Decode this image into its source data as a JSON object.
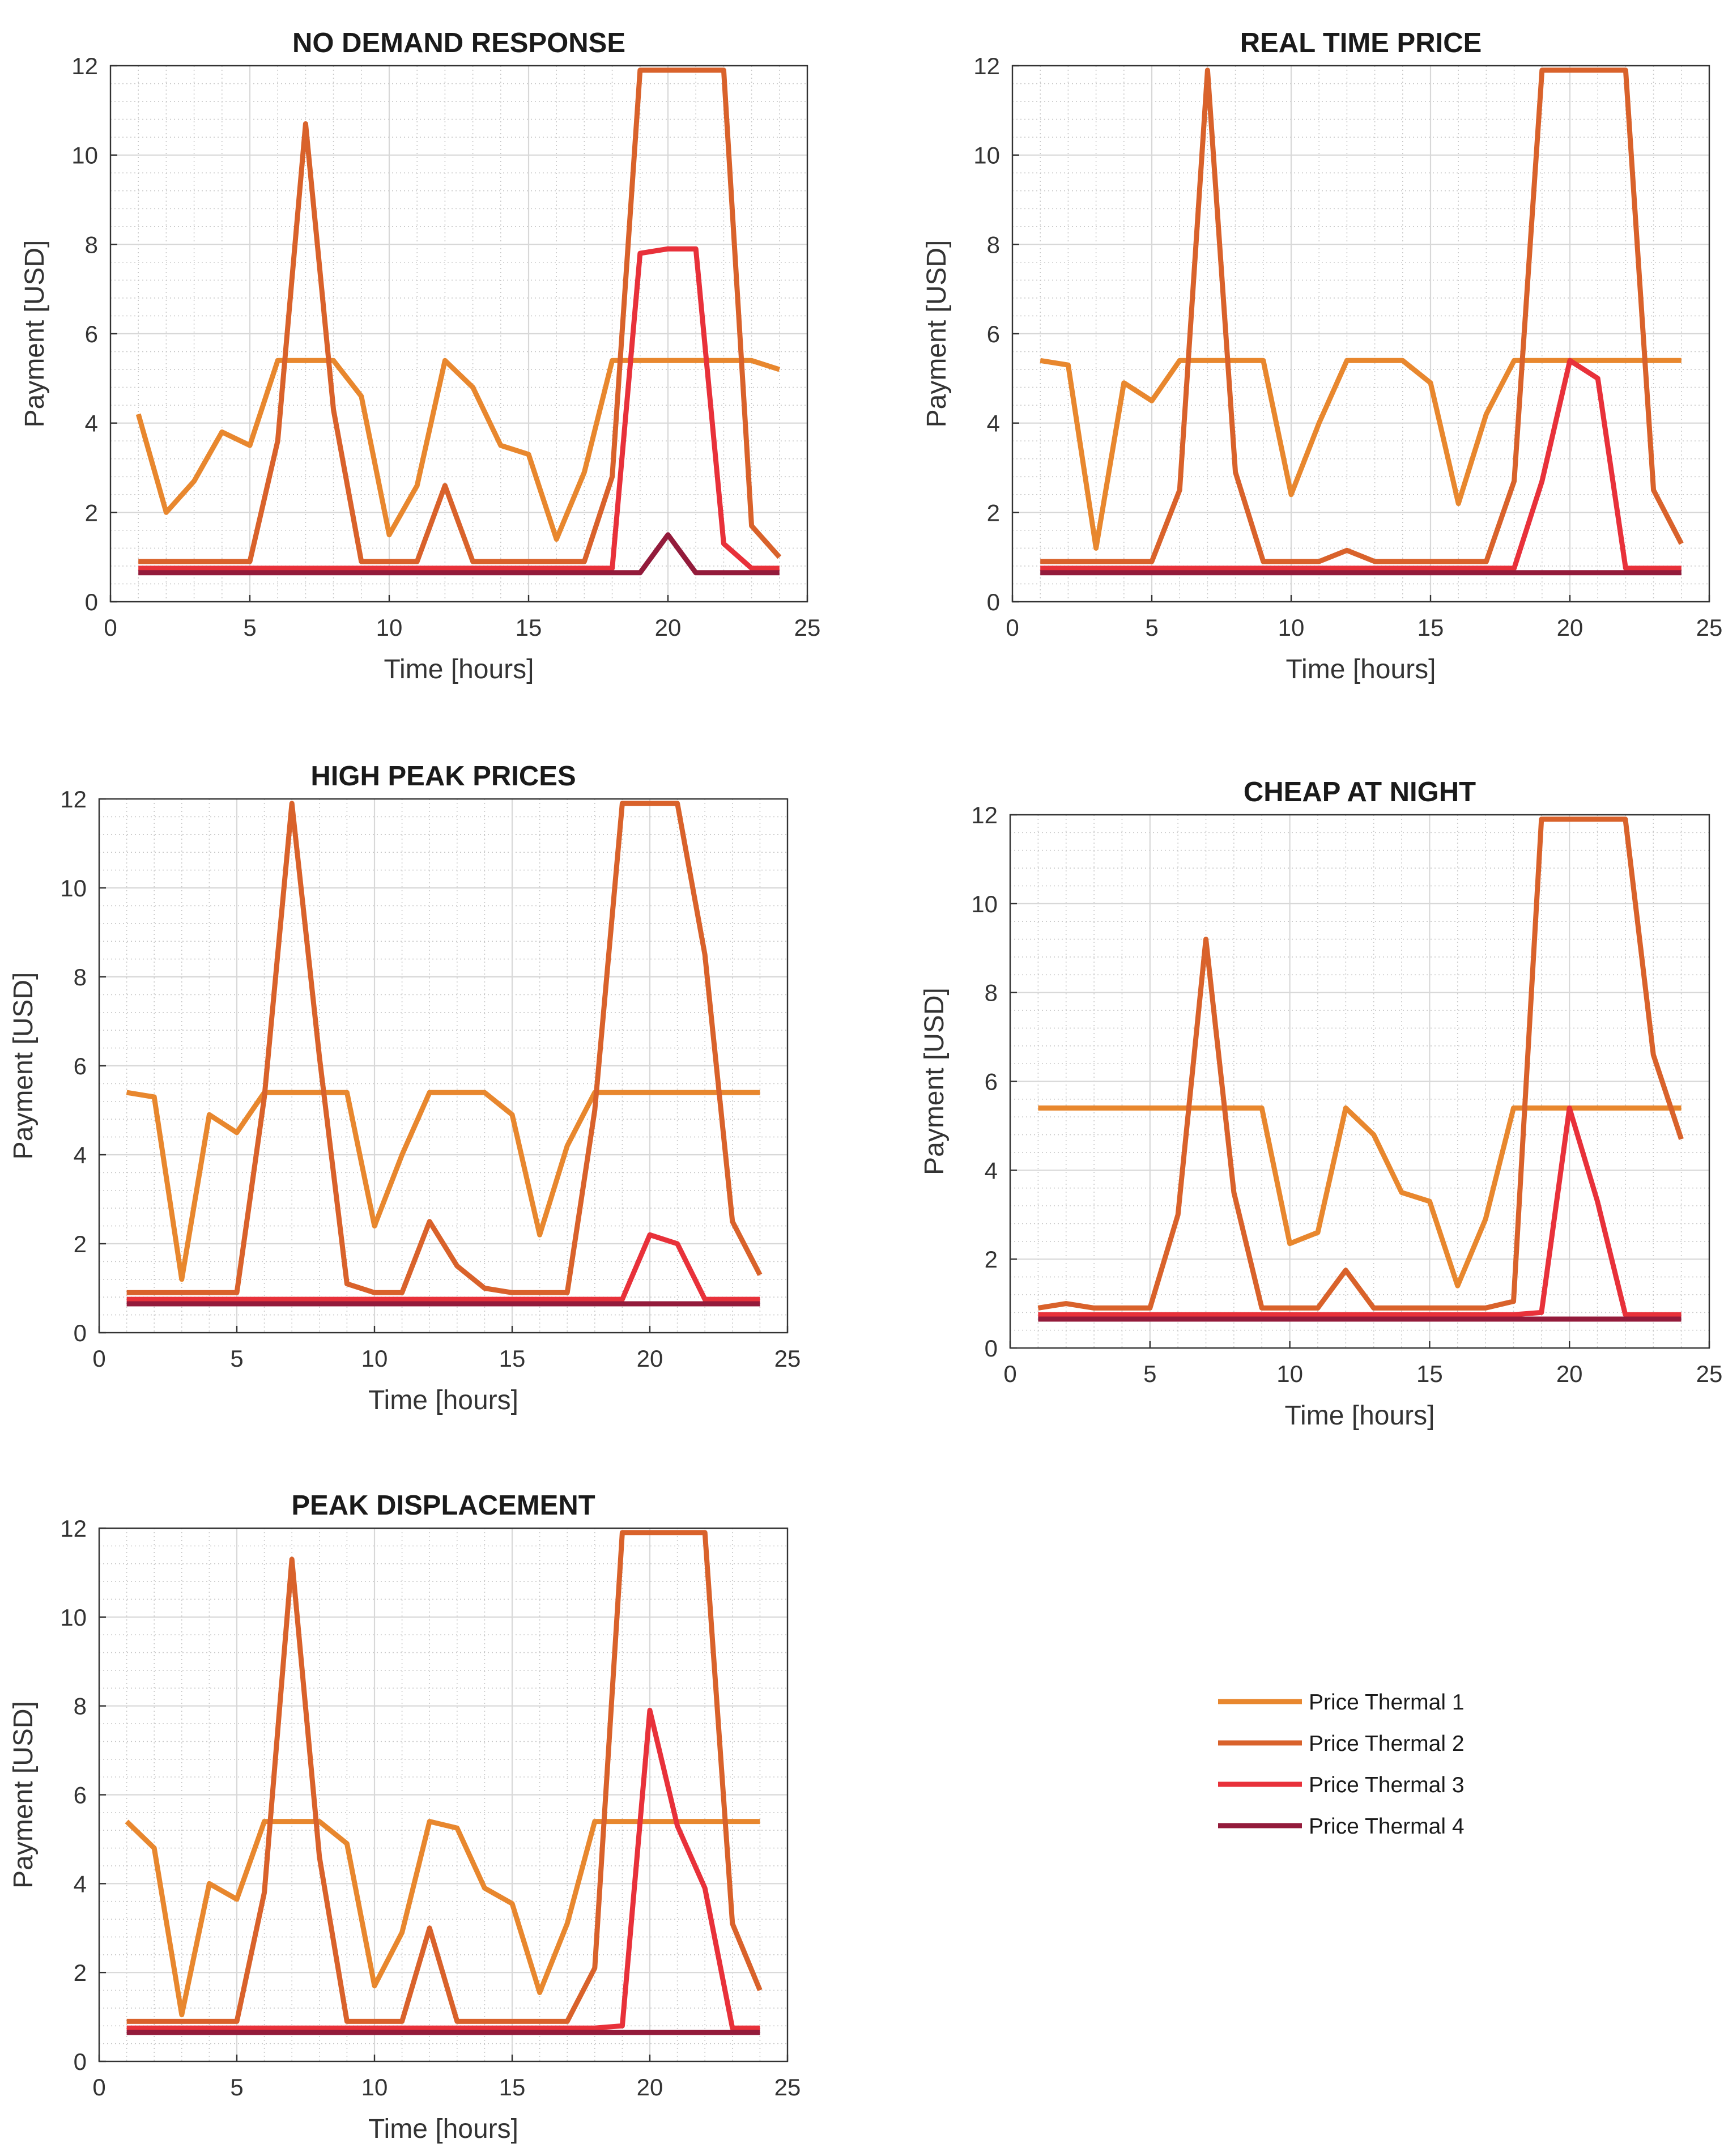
{
  "colors": {
    "series": [
      "#E8872E",
      "#D9622B",
      "#E8313A",
      "#931B3B"
    ],
    "grid_major": "#d8d8d8",
    "grid_minor": "#c8c8c8",
    "axis": "#333333"
  },
  "legend": {
    "entries": [
      "Price Thermal 1",
      "Price Thermal 2",
      "Price Thermal 3",
      "Price Thermal 4"
    ]
  },
  "chart_data": [
    {
      "type": "line",
      "title": "NO DEMAND RESPONSE",
      "xlabel": "Time [hours]",
      "ylabel": "Payment [USD]",
      "xlim": [
        0,
        25
      ],
      "ylim": [
        0,
        12
      ],
      "xticks": [
        0,
        5,
        10,
        15,
        20,
        25
      ],
      "yticks": [
        0,
        2,
        4,
        6,
        8,
        10,
        12
      ],
      "grid": true,
      "x": [
        1,
        2,
        3,
        4,
        5,
        6,
        7,
        8,
        9,
        10,
        11,
        12,
        13,
        14,
        15,
        16,
        17,
        18,
        19,
        20,
        21,
        22,
        23,
        24
      ],
      "series": [
        {
          "name": "Price Thermal 1",
          "values": [
            4.2,
            2.0,
            2.7,
            3.8,
            3.5,
            5.4,
            5.4,
            5.4,
            4.6,
            1.5,
            2.6,
            5.4,
            4.8,
            3.5,
            3.3,
            1.4,
            2.9,
            5.4,
            5.4,
            5.4,
            5.4,
            5.4,
            5.4,
            5.2
          ]
        },
        {
          "name": "Price Thermal 2",
          "values": [
            0.9,
            0.9,
            0.9,
            0.9,
            0.9,
            3.6,
            10.7,
            4.3,
            0.9,
            0.9,
            0.9,
            2.6,
            0.9,
            0.9,
            0.9,
            0.9,
            0.9,
            2.8,
            11.9,
            11.9,
            11.9,
            11.9,
            1.7,
            1.0
          ]
        },
        {
          "name": "Price Thermal 3",
          "values": [
            0.75,
            0.75,
            0.75,
            0.75,
            0.75,
            0.75,
            0.75,
            0.75,
            0.75,
            0.75,
            0.75,
            0.75,
            0.75,
            0.75,
            0.75,
            0.75,
            0.75,
            0.75,
            7.8,
            7.9,
            7.9,
            1.3,
            0.75,
            0.75
          ]
        },
        {
          "name": "Price Thermal 4",
          "values": [
            0.65,
            0.65,
            0.65,
            0.65,
            0.65,
            0.65,
            0.65,
            0.65,
            0.65,
            0.65,
            0.65,
            0.65,
            0.65,
            0.65,
            0.65,
            0.65,
            0.65,
            0.65,
            0.65,
            1.5,
            0.65,
            0.65,
            0.65,
            0.65
          ]
        }
      ]
    },
    {
      "type": "line",
      "title": "REAL TIME PRICE",
      "xlabel": "Time [hours]",
      "ylabel": "Payment [USD]",
      "xlim": [
        0,
        25
      ],
      "ylim": [
        0,
        12
      ],
      "xticks": [
        0,
        5,
        10,
        15,
        20,
        25
      ],
      "yticks": [
        0,
        2,
        4,
        6,
        8,
        10,
        12
      ],
      "grid": true,
      "x": [
        1,
        2,
        3,
        4,
        5,
        6,
        7,
        8,
        9,
        10,
        11,
        12,
        13,
        14,
        15,
        16,
        17,
        18,
        19,
        20,
        21,
        22,
        23,
        24
      ],
      "series": [
        {
          "name": "Price Thermal 1",
          "values": [
            5.4,
            5.3,
            1.2,
            4.9,
            4.5,
            5.4,
            5.4,
            5.4,
            5.4,
            2.4,
            4.0,
            5.4,
            5.4,
            5.4,
            4.9,
            2.2,
            4.2,
            5.4,
            5.4,
            5.4,
            5.4,
            5.4,
            5.4,
            5.4
          ]
        },
        {
          "name": "Price Thermal 2",
          "values": [
            0.9,
            0.9,
            0.9,
            0.9,
            0.9,
            2.5,
            11.9,
            2.9,
            0.9,
            0.9,
            0.9,
            1.15,
            0.9,
            0.9,
            0.9,
            0.9,
            0.9,
            2.7,
            11.9,
            11.9,
            11.9,
            11.9,
            2.5,
            1.3
          ]
        },
        {
          "name": "Price Thermal 3",
          "values": [
            0.75,
            0.75,
            0.75,
            0.75,
            0.75,
            0.75,
            0.75,
            0.75,
            0.75,
            0.75,
            0.75,
            0.75,
            0.75,
            0.75,
            0.75,
            0.75,
            0.75,
            0.75,
            2.7,
            5.4,
            5.0,
            0.75,
            0.75,
            0.75
          ]
        },
        {
          "name": "Price Thermal 4",
          "values": [
            0.65,
            0.65,
            0.65,
            0.65,
            0.65,
            0.65,
            0.65,
            0.65,
            0.65,
            0.65,
            0.65,
            0.65,
            0.65,
            0.65,
            0.65,
            0.65,
            0.65,
            0.65,
            0.65,
            0.65,
            0.65,
            0.65,
            0.65,
            0.65
          ]
        }
      ]
    },
    {
      "type": "line",
      "title": "HIGH PEAK PRICES",
      "xlabel": "Time [hours]",
      "ylabel": "Payment [USD]",
      "xlim": [
        0,
        25
      ],
      "ylim": [
        0,
        12
      ],
      "xticks": [
        0,
        5,
        10,
        15,
        20,
        25
      ],
      "yticks": [
        0,
        2,
        4,
        6,
        8,
        10,
        12
      ],
      "grid": true,
      "x": [
        1,
        2,
        3,
        4,
        5,
        6,
        7,
        8,
        9,
        10,
        11,
        12,
        13,
        14,
        15,
        16,
        17,
        18,
        19,
        20,
        21,
        22,
        23,
        24
      ],
      "series": [
        {
          "name": "Price Thermal 1",
          "values": [
            5.4,
            5.3,
            1.2,
            4.9,
            4.5,
            5.4,
            5.4,
            5.4,
            5.4,
            2.4,
            4.0,
            5.4,
            5.4,
            5.4,
            4.9,
            2.2,
            4.2,
            5.4,
            5.4,
            5.4,
            5.4,
            5.4,
            5.4,
            5.4
          ]
        },
        {
          "name": "Price Thermal 2",
          "values": [
            0.9,
            0.9,
            0.9,
            0.9,
            0.9,
            5.3,
            11.9,
            6.2,
            1.1,
            0.9,
            0.9,
            2.5,
            1.5,
            1.0,
            0.9,
            0.9,
            0.9,
            5.0,
            11.9,
            11.9,
            11.9,
            8.5,
            2.5,
            1.3
          ]
        },
        {
          "name": "Price Thermal 3",
          "values": [
            0.75,
            0.75,
            0.75,
            0.75,
            0.75,
            0.75,
            0.75,
            0.75,
            0.75,
            0.75,
            0.75,
            0.75,
            0.75,
            0.75,
            0.75,
            0.75,
            0.75,
            0.75,
            0.75,
            2.2,
            2.0,
            0.75,
            0.75,
            0.75
          ]
        },
        {
          "name": "Price Thermal 4",
          "values": [
            0.65,
            0.65,
            0.65,
            0.65,
            0.65,
            0.65,
            0.65,
            0.65,
            0.65,
            0.65,
            0.65,
            0.65,
            0.65,
            0.65,
            0.65,
            0.65,
            0.65,
            0.65,
            0.65,
            0.65,
            0.65,
            0.65,
            0.65,
            0.65
          ]
        }
      ]
    },
    {
      "type": "line",
      "title": "CHEAP AT NIGHT",
      "xlabel": "Time [hours]",
      "ylabel": "Payment [USD]",
      "xlim": [
        0,
        25
      ],
      "ylim": [
        0,
        12
      ],
      "xticks": [
        0,
        5,
        10,
        15,
        20,
        25
      ],
      "yticks": [
        0,
        2,
        4,
        6,
        8,
        10,
        12
      ],
      "grid": true,
      "x": [
        1,
        2,
        3,
        4,
        5,
        6,
        7,
        8,
        9,
        10,
        11,
        12,
        13,
        14,
        15,
        16,
        17,
        18,
        19,
        20,
        21,
        22,
        23,
        24
      ],
      "series": [
        {
          "name": "Price Thermal 1",
          "values": [
            5.4,
            5.4,
            5.4,
            5.4,
            5.4,
            5.4,
            5.4,
            5.4,
            5.4,
            2.35,
            2.6,
            5.4,
            4.8,
            3.5,
            3.3,
            1.4,
            2.9,
            5.4,
            5.4,
            5.4,
            5.4,
            5.4,
            5.4,
            5.4
          ]
        },
        {
          "name": "Price Thermal 2",
          "values": [
            0.9,
            1.0,
            0.9,
            0.9,
            0.9,
            3.0,
            9.2,
            3.5,
            0.9,
            0.9,
            0.9,
            1.75,
            0.9,
            0.9,
            0.9,
            0.9,
            0.9,
            1.05,
            11.9,
            11.9,
            11.9,
            11.9,
            6.6,
            4.7
          ]
        },
        {
          "name": "Price Thermal 3",
          "values": [
            0.75,
            0.75,
            0.75,
            0.75,
            0.75,
            0.75,
            0.75,
            0.75,
            0.75,
            0.75,
            0.75,
            0.75,
            0.75,
            0.75,
            0.75,
            0.75,
            0.75,
            0.75,
            0.8,
            5.4,
            3.3,
            0.75,
            0.75,
            0.75
          ]
        },
        {
          "name": "Price Thermal 4",
          "values": [
            0.65,
            0.65,
            0.65,
            0.65,
            0.65,
            0.65,
            0.65,
            0.65,
            0.65,
            0.65,
            0.65,
            0.65,
            0.65,
            0.65,
            0.65,
            0.65,
            0.65,
            0.65,
            0.65,
            0.65,
            0.65,
            0.65,
            0.65,
            0.65
          ]
        }
      ]
    },
    {
      "type": "line",
      "title": "PEAK DISPLACEMENT",
      "xlabel": "Time [hours]",
      "ylabel": "Payment [USD]",
      "xlim": [
        0,
        25
      ],
      "ylim": [
        0,
        12
      ],
      "xticks": [
        0,
        5,
        10,
        15,
        20,
        25
      ],
      "yticks": [
        0,
        2,
        4,
        6,
        8,
        10,
        12
      ],
      "grid": true,
      "x": [
        1,
        2,
        3,
        4,
        5,
        6,
        7,
        8,
        9,
        10,
        11,
        12,
        13,
        14,
        15,
        16,
        17,
        18,
        19,
        20,
        21,
        22,
        23,
        24
      ],
      "series": [
        {
          "name": "Price Thermal 1",
          "values": [
            5.4,
            4.8,
            1.05,
            4.0,
            3.65,
            5.4,
            5.4,
            5.4,
            4.9,
            1.7,
            2.9,
            5.4,
            5.25,
            3.9,
            3.55,
            1.55,
            3.1,
            5.4,
            5.4,
            5.4,
            5.4,
            5.4,
            5.4,
            5.4
          ]
        },
        {
          "name": "Price Thermal 2",
          "values": [
            0.9,
            0.9,
            0.9,
            0.9,
            0.9,
            3.8,
            11.3,
            4.6,
            0.9,
            0.9,
            0.9,
            3.0,
            0.9,
            0.9,
            0.9,
            0.9,
            0.9,
            2.1,
            11.9,
            11.9,
            11.9,
            11.9,
            3.1,
            1.6
          ]
        },
        {
          "name": "Price Thermal 3",
          "values": [
            0.75,
            0.75,
            0.75,
            0.75,
            0.75,
            0.75,
            0.75,
            0.75,
            0.75,
            0.75,
            0.75,
            0.75,
            0.75,
            0.75,
            0.75,
            0.75,
            0.75,
            0.75,
            0.8,
            7.9,
            5.3,
            3.9,
            0.75,
            0.75
          ]
        },
        {
          "name": "Price Thermal 4",
          "values": [
            0.65,
            0.65,
            0.65,
            0.65,
            0.65,
            0.65,
            0.65,
            0.65,
            0.65,
            0.65,
            0.65,
            0.65,
            0.65,
            0.65,
            0.65,
            0.65,
            0.65,
            0.65,
            0.65,
            0.65,
            0.65,
            0.65,
            0.65,
            0.65
          ]
        }
      ]
    }
  ]
}
